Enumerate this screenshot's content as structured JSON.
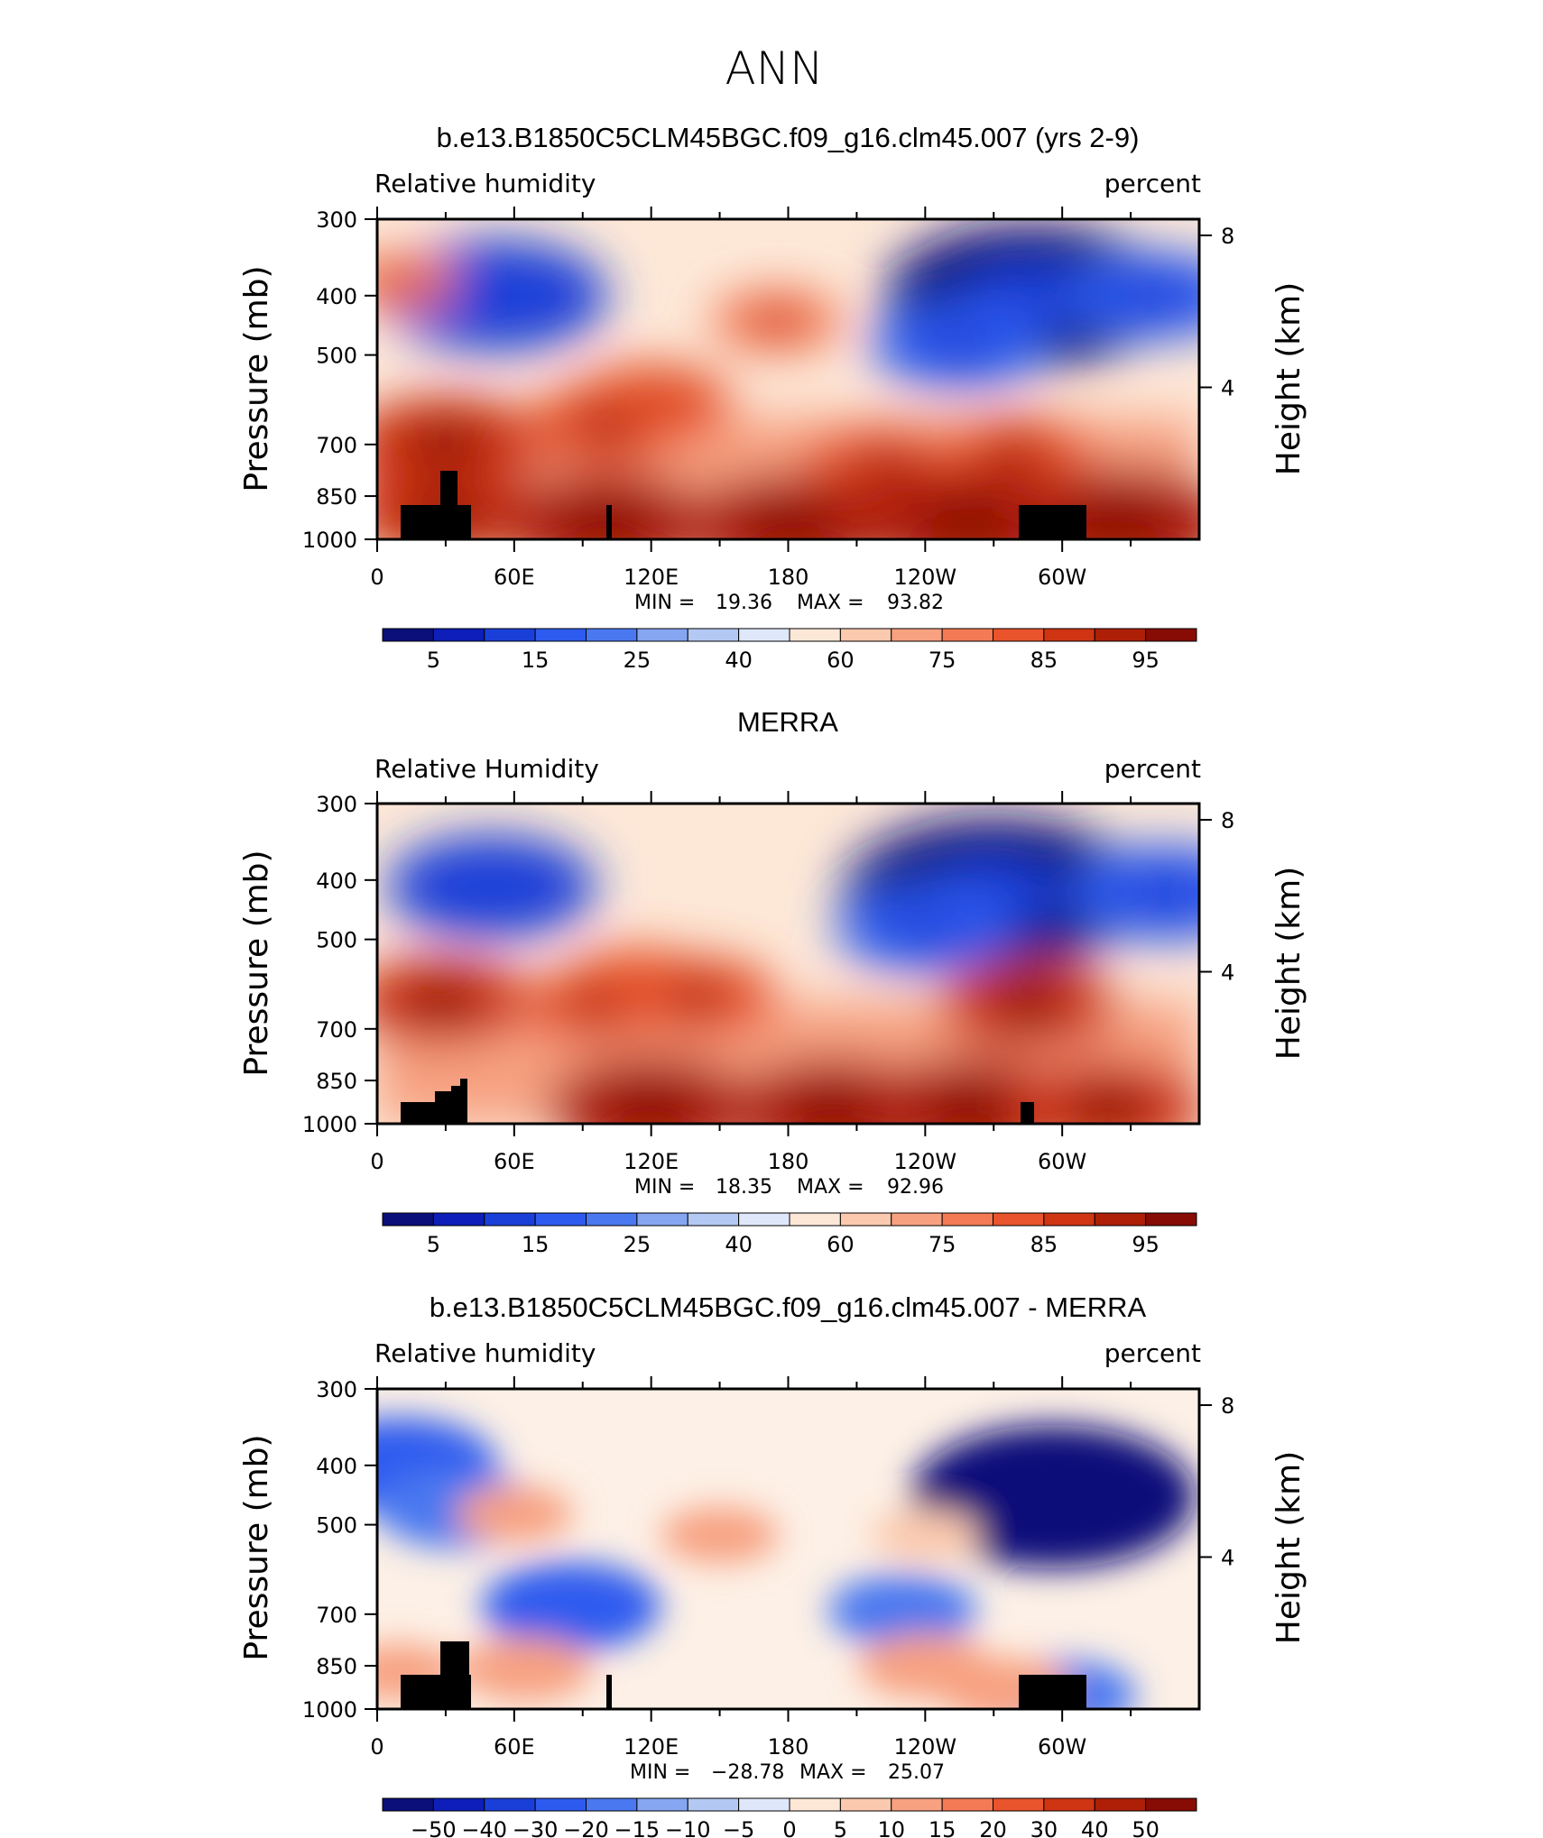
{
  "figure": {
    "title": "ANN"
  },
  "chart_data": [
    {
      "type": "heatmap",
      "title": "b.e13.B1850C5CLM45BGC.f09_g16.clm45.007 (yrs 2-9)",
      "left_label": "Relative  humidity",
      "right_label": "percent",
      "xlabel": "",
      "ylabel": "Pressure  (mb)",
      "ylabel_right": "Height  (km)",
      "x_ticks": [
        "0",
        "60E",
        "120E",
        "180",
        "120W",
        "60W"
      ],
      "y_ticks": [
        "300",
        "400",
        "500",
        "700",
        "850",
        "1000"
      ],
      "y_ticks_right": [
        "8",
        "4"
      ],
      "xlim": [
        0,
        360
      ],
      "ylim": [
        1000,
        300
      ],
      "stats": {
        "min_label": "MIN  =",
        "min": "19.36",
        "max_label": "MAX  =",
        "max": "93.82"
      },
      "colorbar_labels": [
        "5",
        "15",
        "25",
        "40",
        "60",
        "75",
        "85",
        "95"
      ],
      "colors": [
        "#0b0f7a",
        "#0d1fb8",
        "#1a3fd8",
        "#2e5bef",
        "#4a78f0",
        "#86a6f2",
        "#b4c8f4",
        "#dfe8fb",
        "#fde8d8",
        "#fbc9ad",
        "#f7a181",
        "#f37a55",
        "#e9542c",
        "#cf3513",
        "#ae1f08",
        "#870c05"
      ],
      "features": [
        {
          "lon": 52,
          "p": 400,
          "v": 20
        },
        {
          "lon": 10,
          "p": 380,
          "v": -6
        },
        {
          "lon": 285,
          "p": 400,
          "v": 28
        },
        {
          "lon": 255,
          "p": 480,
          "v": 14
        },
        {
          "lon": 340,
          "p": 400,
          "v": 14
        },
        {
          "lon": 175,
          "p": 440,
          "v": 8
        },
        {
          "lon": 120,
          "p": 600,
          "v": 12
        },
        {
          "lon": 100,
          "p": 650,
          "v": 12
        },
        {
          "lon": 30,
          "p": 700,
          "v": 16
        },
        {
          "lon": 280,
          "p": 720,
          "v": 10
        },
        {
          "lon": 222,
          "p": 760,
          "v": 12
        },
        {
          "lon": 30,
          "p": 900,
          "v": 16
        },
        {
          "lon": 100,
          "p": 940,
          "v": 18
        },
        {
          "lon": 180,
          "p": 950,
          "v": 18
        },
        {
          "lon": 260,
          "p": 940,
          "v": 20
        },
        {
          "lon": 325,
          "p": 940,
          "v": 20
        }
      ]
    },
    {
      "type": "heatmap",
      "title": "MERRA",
      "left_label": "Relative  Humidity",
      "right_label": "percent",
      "xlabel": "",
      "ylabel": "Pressure  (mb)",
      "ylabel_right": "Height  (km)",
      "x_ticks": [
        "0",
        "60E",
        "120E",
        "180",
        "120W",
        "60W"
      ],
      "y_ticks": [
        "300",
        "400",
        "500",
        "700",
        "850",
        "1000"
      ],
      "y_ticks_right": [
        "8",
        "4"
      ],
      "xlim": [
        0,
        360
      ],
      "ylim": [
        1000,
        300
      ],
      "stats": {
        "min_label": "MIN  =",
        "min": "18.35",
        "max_label": "MAX  =",
        "max": "92.96"
      },
      "colorbar_labels": [
        "5",
        "15",
        "25",
        "40",
        "60",
        "75",
        "85",
        "95"
      ],
      "colors": [
        "#0b0f7a",
        "#0d1fb8",
        "#1a3fd8",
        "#2e5bef",
        "#4a78f0",
        "#86a6f2",
        "#b4c8f4",
        "#dfe8fb",
        "#fde8d8",
        "#fbc9ad",
        "#f7a181",
        "#f37a55",
        "#e9542c",
        "#cf3513",
        "#ae1f08",
        "#870c05"
      ],
      "features": [
        {
          "lon": 50,
          "p": 410,
          "v": 18
        },
        {
          "lon": 270,
          "p": 420,
          "v": 30
        },
        {
          "lon": 240,
          "p": 480,
          "v": 14
        },
        {
          "lon": 345,
          "p": 420,
          "v": 16
        },
        {
          "lon": 115,
          "p": 600,
          "v": 12
        },
        {
          "lon": 140,
          "p": 620,
          "v": 12
        },
        {
          "lon": 95,
          "p": 640,
          "v": 10
        },
        {
          "lon": 28,
          "p": 630,
          "v": 14
        },
        {
          "lon": 285,
          "p": 640,
          "v": 14
        },
        {
          "lon": 120,
          "p": 940,
          "v": 18
        },
        {
          "lon": 200,
          "p": 950,
          "v": 18
        },
        {
          "lon": 260,
          "p": 945,
          "v": 18
        },
        {
          "lon": 320,
          "p": 940,
          "v": 16
        }
      ]
    },
    {
      "type": "heatmap",
      "title": "b.e13.B1850C5CLM45BGC.f09_g16.clm45.007 - MERRA",
      "left_label": "Relative  humidity",
      "right_label": "percent",
      "xlabel": "",
      "ylabel": "Pressure  (mb)",
      "ylabel_right": "Height  (km)",
      "x_ticks": [
        "0",
        "60E",
        "120E",
        "180",
        "120W",
        "60W"
      ],
      "y_ticks": [
        "300",
        "400",
        "500",
        "700",
        "850",
        "1000"
      ],
      "y_ticks_right": [
        "8",
        "4"
      ],
      "xlim": [
        0,
        360
      ],
      "ylim": [
        1000,
        300
      ],
      "stats": {
        "min_label": "MIN  =",
        "min": "−28.78",
        "max_label": "MAX  =",
        "max": "25.07"
      },
      "colorbar_labels": [
        "−50",
        "−40",
        "−30",
        "−20",
        "−15",
        "−10",
        "−5",
        "0",
        "5",
        "10",
        "15",
        "20",
        "30",
        "40",
        "50"
      ],
      "colors": [
        "#0b0f7a",
        "#0d1fb8",
        "#1a3fd8",
        "#2e5bef",
        "#4a78f0",
        "#86a6f2",
        "#b4c8f4",
        "#dfe8fb",
        "#fde8d8",
        "#fbc9ad",
        "#f7a181",
        "#f37a55",
        "#e9542c",
        "#cf3513",
        "#ae1f08",
        "#870c05"
      ],
      "features": [
        {
          "lon": 296,
          "p": 450,
          "v": 28
        },
        {
          "lon": 10,
          "p": 400,
          "v": 16
        },
        {
          "lon": 35,
          "p": 470,
          "v": 12
        },
        {
          "lon": 85,
          "p": 680,
          "v": 14
        },
        {
          "lon": 230,
          "p": 690,
          "v": 10
        },
        {
          "lon": 300,
          "p": 950,
          "v": 10
        },
        {
          "lon": 60,
          "p": 480,
          "v": -6
        },
        {
          "lon": 150,
          "p": 520,
          "v": -6
        },
        {
          "lon": 240,
          "p": 520,
          "v": -5
        },
        {
          "lon": 65,
          "p": 860,
          "v": -8
        },
        {
          "lon": 240,
          "p": 850,
          "v": -8
        },
        {
          "lon": 275,
          "p": 930,
          "v": -8
        },
        {
          "lon": 10,
          "p": 870,
          "v": -6
        }
      ]
    }
  ]
}
